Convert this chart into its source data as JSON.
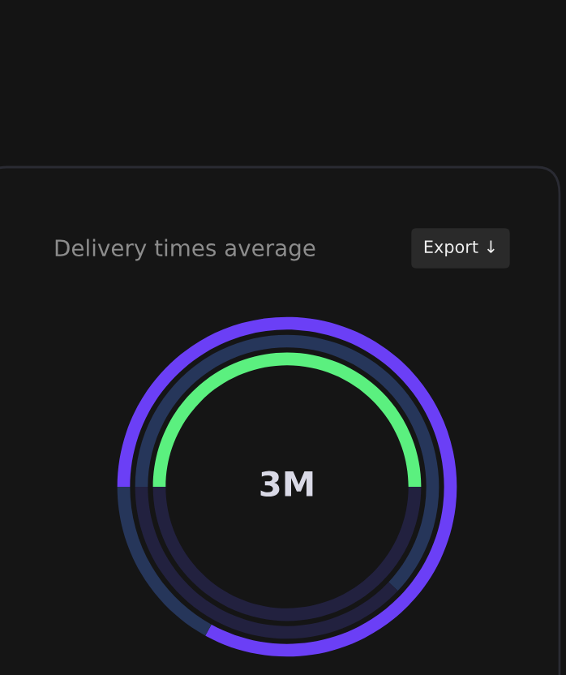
{
  "chart_data": {
    "type": "donut",
    "title": "Delivery times average",
    "annotations": [
      "3M",
      "Export ↓"
    ],
    "categories": [
      null,
      null
    ],
    "series": [
      {
        "values": [
          83,
          17
        ],
        "colors": [
          "#6b3ff6",
          "#26365a"
        ]
      },
      {
        "values": [
          62,
          38
        ],
        "colors": [
          "#26365a",
          "#22213f"
        ]
      },
      {
        "values": [
          50,
          50
        ],
        "colors": [
          "#5bf07f",
          "#22213f"
        ]
      }
    ]
  }
}
